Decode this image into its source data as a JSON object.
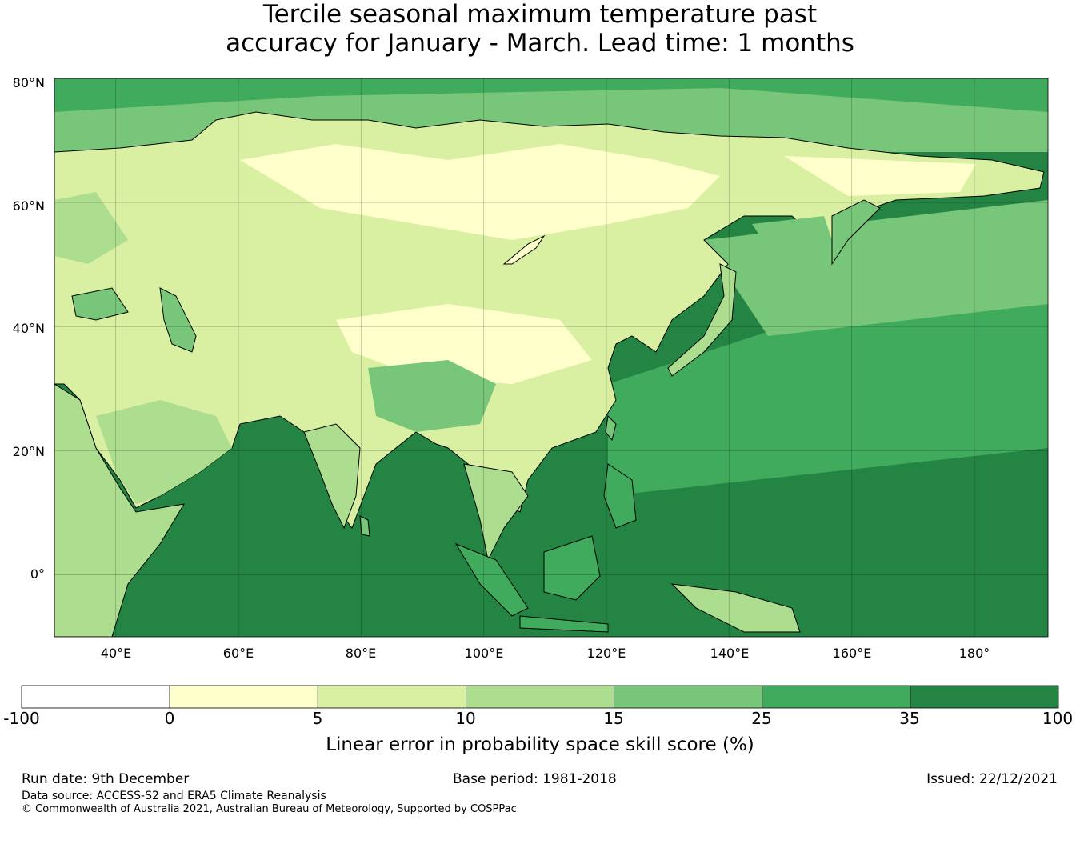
{
  "title": {
    "line1": "Tercile seasonal maximum temperature past",
    "line2": "accuracy for January - March. Lead time: 1 months"
  },
  "map": {
    "lat_labels": [
      "80°N",
      "60°N",
      "40°N",
      "20°N",
      "0°"
    ],
    "lon_labels": [
      "40°E",
      "60°E",
      "80°E",
      "100°E",
      "120°E",
      "140°E",
      "160°E",
      "180°"
    ],
    "lat_values": [
      80,
      60,
      40,
      20,
      0
    ],
    "lon_values": [
      40,
      60,
      80,
      100,
      120,
      140,
      160,
      180
    ],
    "lat_range": [
      -10,
      80
    ],
    "lon_range": [
      30,
      192
    ],
    "ocean_color": "#238443",
    "land_color": "#d9f0a3"
  },
  "colorbar": {
    "ticks": [
      "-100",
      "0",
      "5",
      "10",
      "15",
      "25",
      "35",
      "100"
    ],
    "colors": [
      "#ffffff",
      "#ffffcc",
      "#d9f0a3",
      "#addd8e",
      "#78c679",
      "#41ab5d",
      "#238443"
    ],
    "label": "Linear error in probability space skill score (%)"
  },
  "footer": {
    "run_date": "Run date: 9th December",
    "base_period": "Base period: 1981-2018",
    "issued": "Issued: 22/12/2021",
    "data_source": "Data source: ACCESS-S2 and ERA5 Climate Reanalysis",
    "copyright": "© Commonwealth of Australia 2021, Australian Bureau of Meteorology, Supported by COSPPac"
  }
}
